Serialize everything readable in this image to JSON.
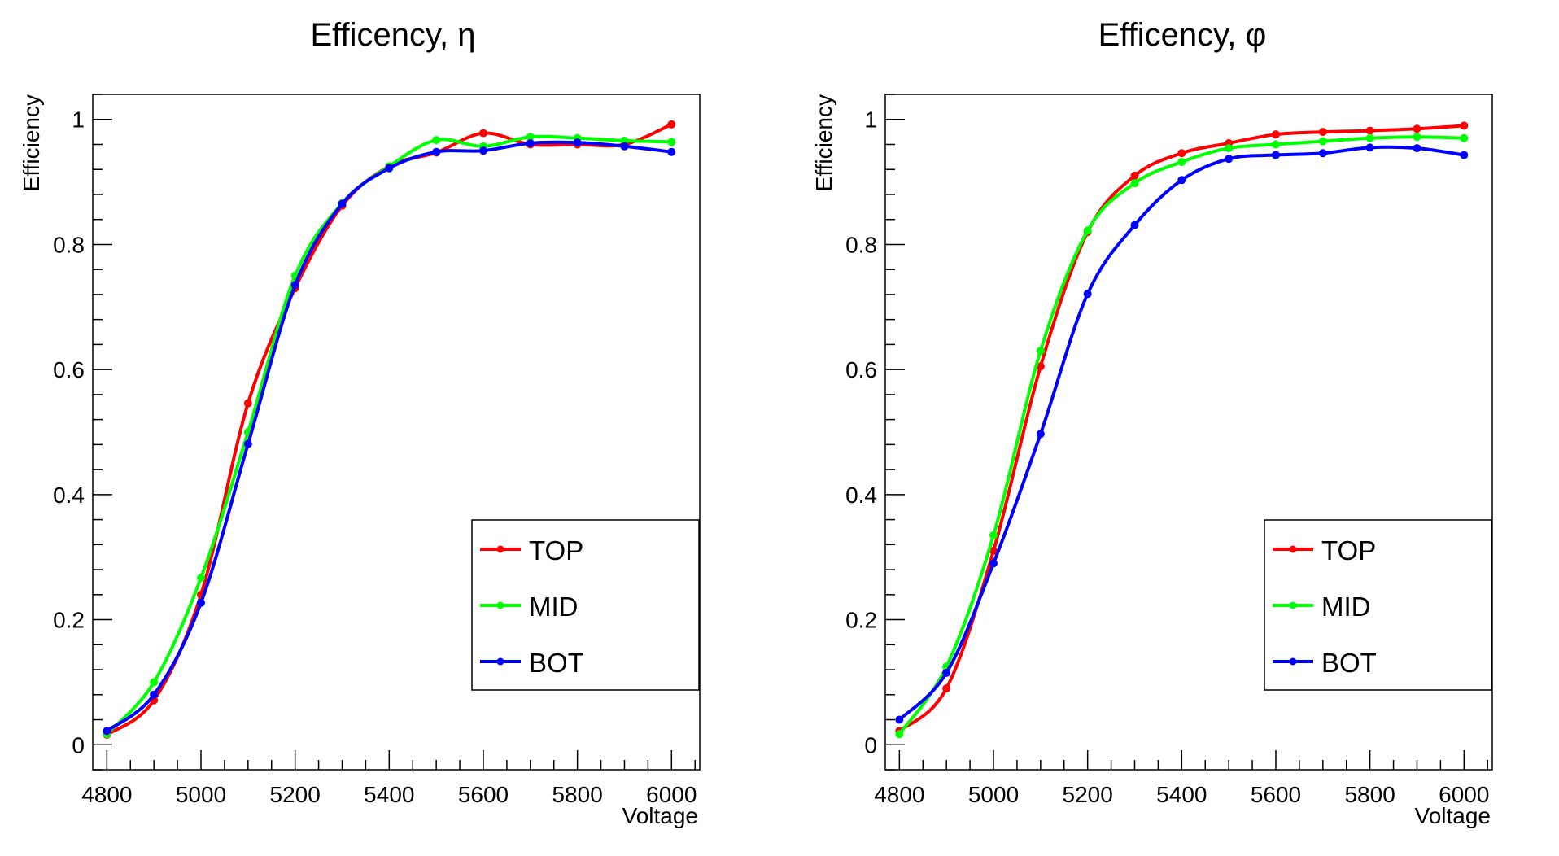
{
  "chart_data": [
    {
      "type": "line",
      "title": "Efficency, η",
      "xlabel": "Voltage",
      "ylabel": "Efficiency",
      "xlim": [
        4770,
        6060
      ],
      "ylim": [
        -0.04,
        1.04
      ],
      "xticks": [
        "4800",
        "5000",
        "5200",
        "5400",
        "5600",
        "5800",
        "6000"
      ],
      "yticks": [
        "0",
        "0.2",
        "0.4",
        "0.6",
        "0.8",
        "1"
      ],
      "legend": "bottom-right",
      "grid": false,
      "x": [
        4800,
        4900,
        5000,
        5100,
        5200,
        5300,
        5400,
        5500,
        5600,
        5700,
        5800,
        5900,
        6000
      ],
      "series": [
        {
          "name": "TOP",
          "color": "#ff0000",
          "values": [
            0.016,
            0.071,
            0.24,
            0.546,
            0.73,
            0.862,
            0.925,
            0.947,
            0.978,
            0.96,
            0.96,
            0.96,
            0.992
          ]
        },
        {
          "name": "MID",
          "color": "#00ff00",
          "values": [
            0.017,
            0.1,
            0.267,
            0.5,
            0.75,
            0.866,
            0.925,
            0.967,
            0.957,
            0.972,
            0.97,
            0.966,
            0.964
          ]
        },
        {
          "name": "BOT",
          "color": "#0000ff",
          "values": [
            0.022,
            0.08,
            0.227,
            0.481,
            0.735,
            0.865,
            0.922,
            0.948,
            0.95,
            0.962,
            0.963,
            0.957,
            0.948
          ]
        }
      ]
    },
    {
      "type": "line",
      "title": "Efficency, φ",
      "xlabel": "Voltage",
      "ylabel": "Efficiency",
      "xlim": [
        4770,
        6060
      ],
      "ylim": [
        -0.04,
        1.04
      ],
      "xticks": [
        "4800",
        "5000",
        "5200",
        "5400",
        "5600",
        "5800",
        "6000"
      ],
      "yticks": [
        "0",
        "0.2",
        "0.4",
        "0.6",
        "0.8",
        "1"
      ],
      "legend": "bottom-right",
      "grid": false,
      "x": [
        4800,
        4900,
        5000,
        5100,
        5200,
        5300,
        5400,
        5500,
        5600,
        5700,
        5800,
        5900,
        6000
      ],
      "series": [
        {
          "name": "TOP",
          "color": "#ff0000",
          "values": [
            0.022,
            0.09,
            0.31,
            0.605,
            0.82,
            0.91,
            0.946,
            0.962,
            0.976,
            0.98,
            0.982,
            0.985,
            0.99
          ]
        },
        {
          "name": "MID",
          "color": "#00ff00",
          "values": [
            0.017,
            0.125,
            0.335,
            0.63,
            0.822,
            0.898,
            0.932,
            0.954,
            0.96,
            0.965,
            0.97,
            0.972,
            0.97
          ]
        },
        {
          "name": "BOT",
          "color": "#0000ff",
          "values": [
            0.04,
            0.115,
            0.29,
            0.497,
            0.721,
            0.831,
            0.903,
            0.937,
            0.943,
            0.946,
            0.955,
            0.954,
            0.943
          ]
        }
      ]
    }
  ]
}
